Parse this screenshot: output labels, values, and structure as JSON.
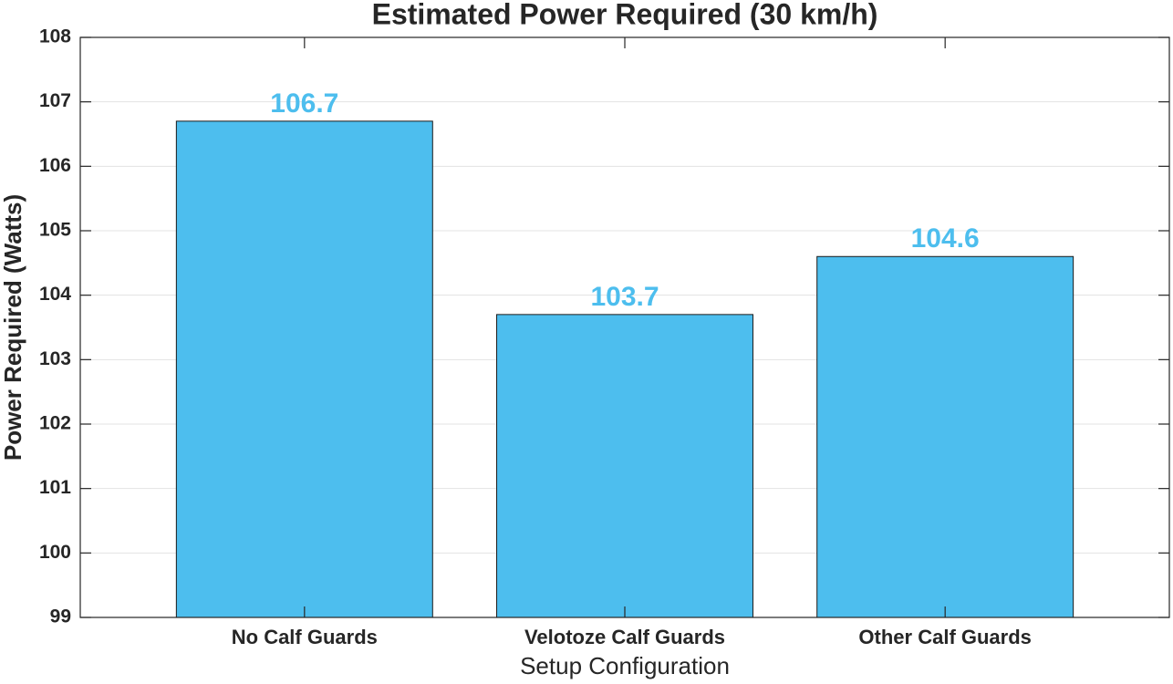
{
  "chart_data": {
    "type": "bar",
    "title": "Estimated Power Required (30 km/h)",
    "xlabel": "Setup Configuration",
    "ylabel": "Power Required (Watts)",
    "categories": [
      "No Calf Guards",
      "Velotoze Calf Guards",
      "Other Calf Guards"
    ],
    "values": [
      106.7,
      103.7,
      104.6
    ],
    "color": "#4dbeee",
    "ylim": [
      99,
      108
    ],
    "yticks": [
      99,
      100,
      101,
      102,
      103,
      104,
      105,
      106,
      107,
      108
    ],
    "grid": true
  }
}
